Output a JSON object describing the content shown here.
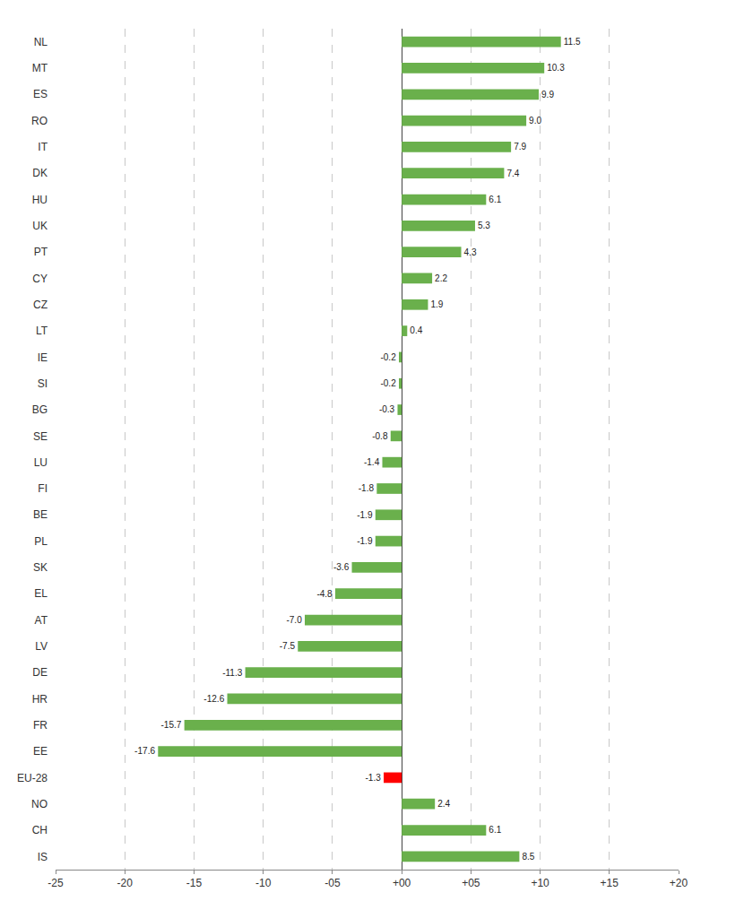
{
  "chart_data": {
    "type": "bar",
    "orientation": "horizontal",
    "categories": [
      "NL",
      "MT",
      "ES",
      "RO",
      "IT",
      "DK",
      "HU",
      "UK",
      "PT",
      "CY",
      "CZ",
      "LT",
      "IE",
      "SI",
      "BG",
      "SE",
      "LU",
      "FI",
      "BE",
      "PL",
      "SK",
      "EL",
      "AT",
      "LV",
      "DE",
      "HR",
      "FR",
      "EE",
      "EU-28",
      "NO",
      "CH",
      "IS"
    ],
    "values": [
      11.5,
      10.3,
      9.9,
      9.0,
      7.9,
      7.4,
      6.1,
      5.3,
      4.3,
      2.2,
      1.9,
      0.4,
      -0.2,
      -0.2,
      -0.3,
      -0.8,
      -1.4,
      -1.8,
      -1.9,
      -1.9,
      -3.6,
      -4.8,
      -7.0,
      -7.5,
      -11.3,
      -12.6,
      -15.7,
      -17.6,
      -1.3,
      2.4,
      6.1,
      8.5
    ],
    "value_labels": [
      "11.5",
      "10.3",
      "9.9",
      "9.0",
      "7.9",
      "7.4",
      "6.1",
      "5.3",
      "4.3",
      "2.2",
      "1.9",
      "0.4",
      "-0.2",
      "-0.2",
      "-0.3",
      "-0.8",
      "-1.4",
      "-1.8",
      "-1.9",
      "-1.9",
      "-3.6",
      "-4.8",
      "-7.0",
      "-7.5",
      "-11.3",
      "-12.6",
      "-15.7",
      "-17.6",
      "-1.3",
      "2.4",
      "6.1",
      "8.5"
    ],
    "colors": [
      "#6ab04c",
      "#6ab04c",
      "#6ab04c",
      "#6ab04c",
      "#6ab04c",
      "#6ab04c",
      "#6ab04c",
      "#6ab04c",
      "#6ab04c",
      "#6ab04c",
      "#6ab04c",
      "#6ab04c",
      "#6ab04c",
      "#6ab04c",
      "#6ab04c",
      "#6ab04c",
      "#6ab04c",
      "#6ab04c",
      "#6ab04c",
      "#6ab04c",
      "#6ab04c",
      "#6ab04c",
      "#6ab04c",
      "#6ab04c",
      "#6ab04c",
      "#6ab04c",
      "#6ab04c",
      "#6ab04c",
      "#ff0000",
      "#6ab04c",
      "#6ab04c",
      "#6ab04c"
    ],
    "data_labels": true,
    "grid": true,
    "xlim": [
      -25,
      20
    ],
    "xticks": [
      -25,
      -20,
      -15,
      -10,
      {
        "value": -5,
        "label": "-05"
      },
      {
        "value": 0,
        "label": "+00"
      },
      {
        "value": 5,
        "label": "+05"
      },
      {
        "value": 10,
        "label": "+10"
      },
      {
        "value": 15,
        "label": "+15"
      },
      {
        "value": 20,
        "label": "+20"
      }
    ]
  }
}
